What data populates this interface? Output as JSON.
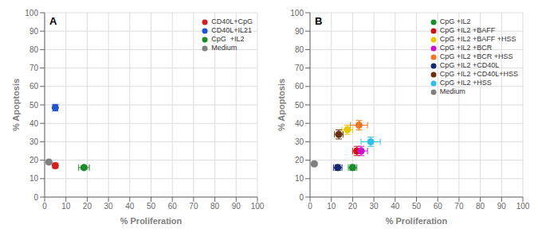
{
  "chart_data": [
    {
      "type": "scatter",
      "title": "A",
      "xlabel": "% Proliferation",
      "ylabel": "% Apoptosis",
      "xlim": [
        0,
        100
      ],
      "ylim": [
        0,
        100
      ],
      "xticks": [
        0,
        10,
        20,
        30,
        40,
        50,
        60,
        70,
        80,
        90,
        100
      ],
      "yticks": [
        0,
        10,
        20,
        30,
        40,
        50,
        60,
        70,
        80,
        90,
        100
      ],
      "grid": true,
      "legend": "upper right",
      "series": [
        {
          "name": "CD40L+CpG",
          "color": "#d42020",
          "x": [
            5.0
          ],
          "y": [
            17.0
          ],
          "xerr": [
            1.0
          ],
          "yerr": [
            1.2
          ]
        },
        {
          "name": "CD40L+IL21",
          "color": "#2255cc",
          "x": [
            5.0
          ],
          "y": [
            48.5
          ],
          "xerr": [
            1.0
          ],
          "yerr": [
            1.8
          ]
        },
        {
          "name": "CpG  +IL2",
          "color": "#1a8c2a",
          "x": [
            18.5
          ],
          "y": [
            16.0
          ],
          "xerr": [
            2.5
          ],
          "yerr": [
            1.0
          ]
        },
        {
          "name": "Medium",
          "color": "#808080",
          "x": [
            2.0
          ],
          "y": [
            19.0
          ],
          "xerr": [
            0.8
          ],
          "yerr": [
            1.0
          ]
        }
      ]
    },
    {
      "type": "scatter",
      "title": "B",
      "xlabel": "% Proliferation",
      "ylabel": "% Apoptosis",
      "xlim": [
        0,
        100
      ],
      "ylim": [
        0,
        100
      ],
      "xticks": [
        0,
        10,
        20,
        30,
        40,
        50,
        60,
        70,
        80,
        90,
        100
      ],
      "yticks": [
        0,
        10,
        20,
        30,
        40,
        50,
        60,
        70,
        80,
        90,
        100
      ],
      "grid": true,
      "legend": "upper right",
      "series": [
        {
          "name": "CpG +IL2",
          "color": "#1a8c2a",
          "x": [
            20.0
          ],
          "y": [
            16.0
          ],
          "xerr": [
            2.0
          ],
          "yerr": [
            1.5
          ]
        },
        {
          "name": "CpG +IL2 +BAFF",
          "color": "#cc1111",
          "x": [
            22.0
          ],
          "y": [
            25.0
          ],
          "xerr": [
            2.0
          ],
          "yerr": [
            2.5
          ]
        },
        {
          "name": "CpG +IL2 +BAFF +HSS",
          "color": "#e8c800",
          "x": [
            17.5
          ],
          "y": [
            36.5
          ],
          "xerr": [
            2.5
          ],
          "yerr": [
            2.5
          ]
        },
        {
          "name": "CpG +IL2 +BCR",
          "color": "#cc10cc",
          "x": [
            24.0
          ],
          "y": [
            25.0
          ],
          "xerr": [
            3.0
          ],
          "yerr": [
            2.5
          ]
        },
        {
          "name": "CpG +IL2 +BCR +HSS",
          "color": "#f07820",
          "x": [
            23.0
          ],
          "y": [
            39.0
          ],
          "xerr": [
            4.0
          ],
          "yerr": [
            2.5
          ]
        },
        {
          "name": "CpG +IL2 +CD40L",
          "color": "#182870",
          "x": [
            13.0
          ],
          "y": [
            16.0
          ],
          "xerr": [
            2.0
          ],
          "yerr": [
            1.5
          ]
        },
        {
          "name": "CpG +IL2 +CD40L+HSS",
          "color": "#6b3010",
          "x": [
            13.5
          ],
          "y": [
            34.0
          ],
          "xerr": [
            2.0
          ],
          "yerr": [
            2.5
          ]
        },
        {
          "name": "CpG +IL2 +HSS",
          "color": "#30c0e8",
          "x": [
            28.5
          ],
          "y": [
            30.0
          ],
          "xerr": [
            4.5
          ],
          "yerr": [
            2.5
          ]
        },
        {
          "name": "Medium",
          "color": "#808080",
          "x": [
            2.0
          ],
          "y": [
            18.0
          ],
          "xerr": [
            0.8
          ],
          "yerr": [
            1.0
          ]
        }
      ]
    }
  ]
}
